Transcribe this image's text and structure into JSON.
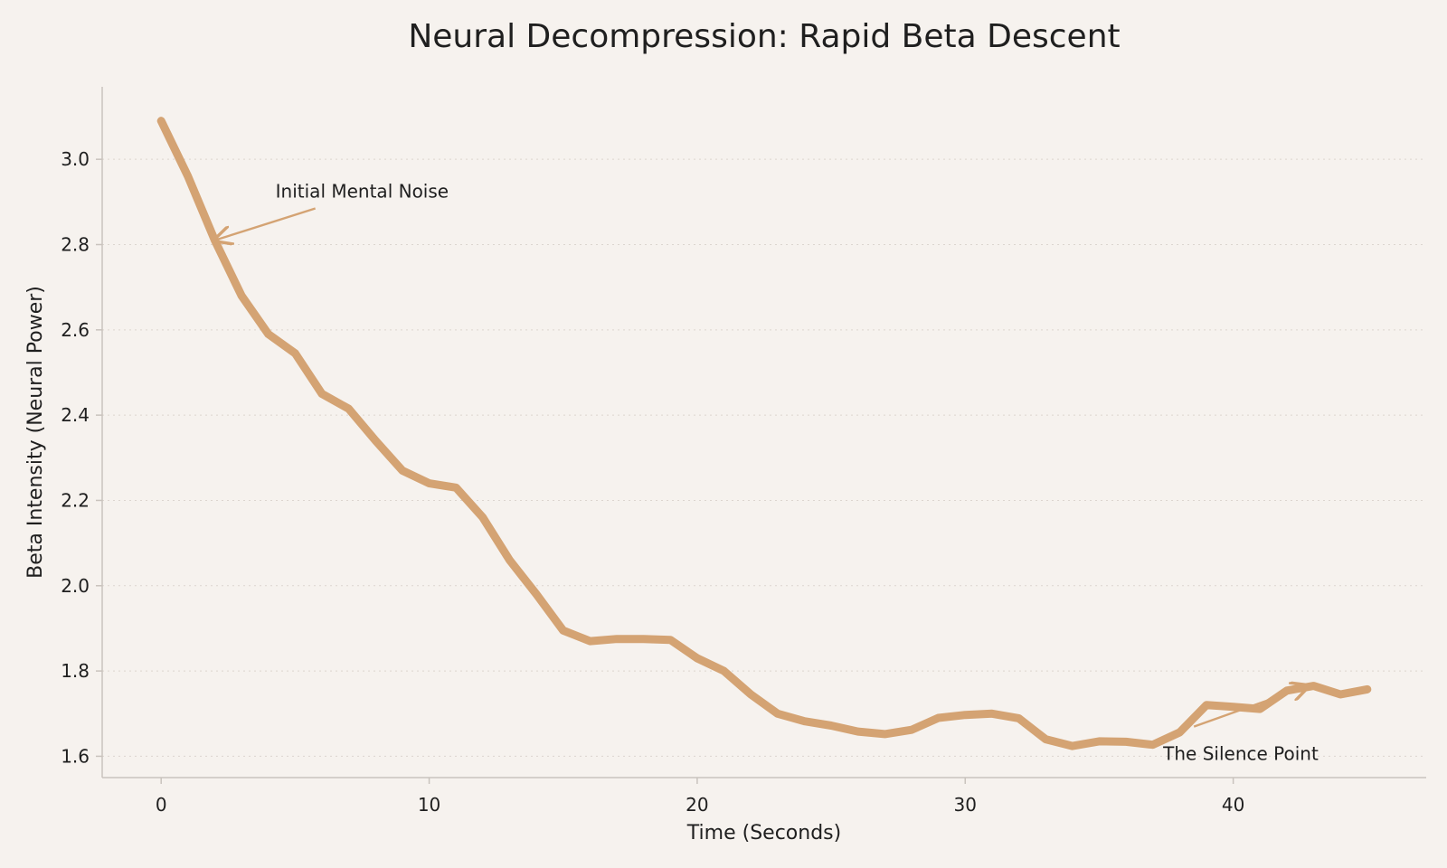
{
  "chart_data": {
    "type": "line",
    "title": "Neural Decompression: Rapid Beta Descent",
    "xlabel": "Time (Seconds)",
    "ylabel": "Beta Intensity (Neural Power)",
    "xlim": [
      -2.2,
      47.2
    ],
    "ylim": [
      1.55,
      3.17
    ],
    "xticks": [
      0,
      10,
      20,
      30,
      40
    ],
    "yticks": [
      1.6,
      1.8,
      2.0,
      2.2,
      2.4,
      2.6,
      2.8,
      3.0
    ],
    "grid": "y-dotted",
    "line_color": "#d4a373",
    "x": [
      0,
      1,
      2,
      3,
      4,
      5,
      6,
      7,
      8,
      9,
      10,
      11,
      12,
      13,
      14,
      15,
      16,
      17,
      18,
      19,
      20,
      21,
      22,
      23,
      24,
      25,
      26,
      27,
      28,
      29,
      30,
      31,
      32,
      33,
      34,
      35,
      36,
      37,
      38,
      39,
      40,
      41,
      42,
      43,
      44,
      45
    ],
    "values": [
      3.09,
      2.96,
      2.81,
      2.68,
      2.59,
      2.545,
      2.45,
      2.415,
      2.34,
      2.27,
      2.24,
      2.23,
      2.16,
      2.06,
      1.98,
      1.895,
      1.87,
      1.875,
      1.875,
      1.873,
      1.83,
      1.8,
      1.745,
      1.7,
      1.682,
      1.672,
      1.658,
      1.652,
      1.662,
      1.69,
      1.697,
      1.7,
      1.689,
      1.64,
      1.624,
      1.635,
      1.634,
      1.627,
      1.656,
      1.72,
      1.716,
      1.711,
      1.754,
      1.765,
      1.745,
      1.757
    ],
    "annotations": [
      {
        "text": "Initial Mental Noise",
        "xy": [
          2,
          2.81
        ],
        "xytext": [
          4.2,
          2.925
        ]
      },
      {
        "text": "The Silence Point",
        "xy": [
          42.8,
          1.765
        ],
        "xytext": [
          38.5,
          1.625
        ]
      }
    ]
  }
}
